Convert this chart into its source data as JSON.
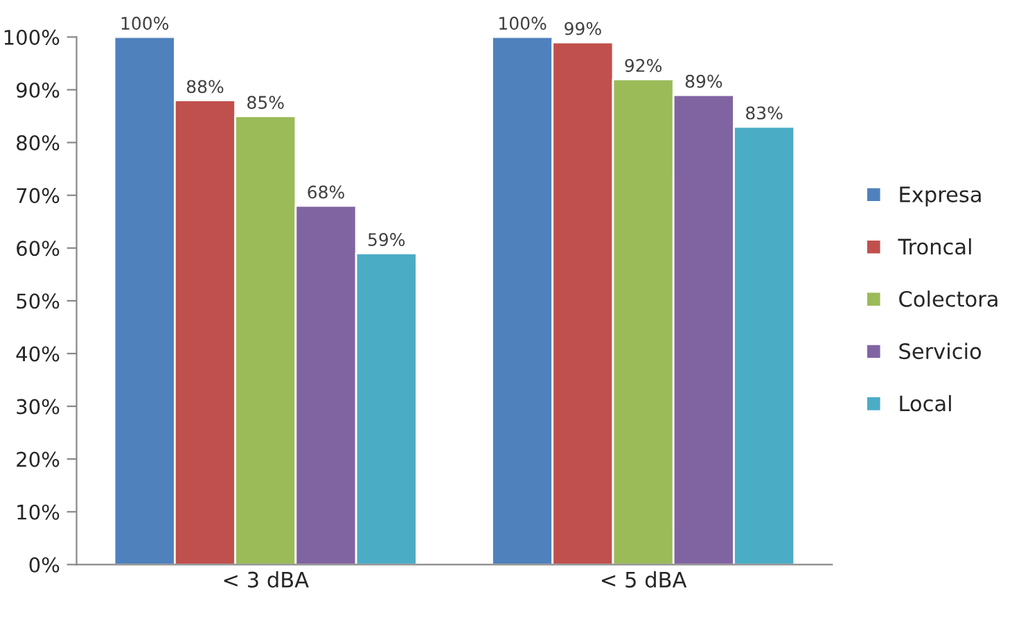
{
  "chart_data": {
    "type": "bar",
    "categories": [
      "< 3 dBA",
      "< 5 dBA"
    ],
    "series": [
      {
        "name": "Expresa",
        "color": "#4f81bd",
        "values": [
          100,
          100
        ]
      },
      {
        "name": "Troncal",
        "color": "#c0504d",
        "values": [
          88,
          99
        ]
      },
      {
        "name": "Colectora",
        "color": "#9bbb59",
        "values": [
          85,
          92
        ]
      },
      {
        "name": "Servicio",
        "color": "#8064a2",
        "values": [
          68,
          89
        ]
      },
      {
        "name": "Local",
        "color": "#4bacc6",
        "values": [
          59,
          83
        ]
      }
    ],
    "ylim": [
      0,
      100
    ],
    "yticks": [
      {
        "value": 0,
        "label": "0%"
      },
      {
        "value": 10,
        "label": "10%"
      },
      {
        "value": 20,
        "label": "20%"
      },
      {
        "value": 30,
        "label": "30%"
      },
      {
        "value": 40,
        "label": "40%"
      },
      {
        "value": 50,
        "label": "50%"
      },
      {
        "value": 60,
        "label": "60%"
      },
      {
        "value": 70,
        "label": "70%"
      },
      {
        "value": 80,
        "label": "80%"
      },
      {
        "value": 90,
        "label": "90%"
      },
      {
        "value": 100,
        "label": "100%"
      }
    ],
    "value_labels": [
      [
        "100%",
        "100%"
      ],
      [
        "88%",
        "99%"
      ],
      [
        "85%",
        "92%"
      ],
      [
        "68%",
        "89%"
      ],
      [
        "59%",
        "83%"
      ]
    ],
    "grid": false,
    "legend": "right"
  }
}
